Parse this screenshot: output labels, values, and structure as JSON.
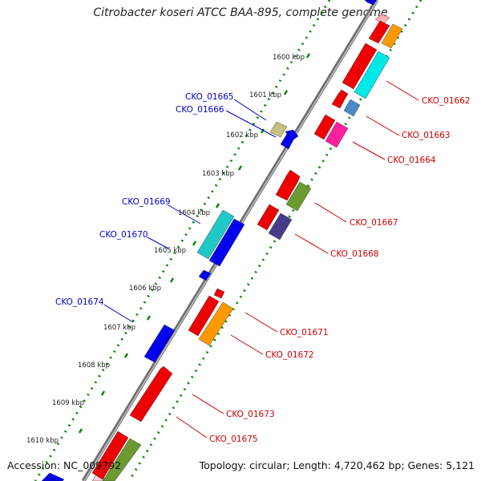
{
  "title": "Citrobacter koseri ATCC BAA-895, complete genome",
  "accession": "Accession: NC_009792",
  "summary": "Topology: circular; Length: 4,720,462 bp; Genes: 5,121",
  "ticks": [
    "1600 kbp",
    "1601 kbp",
    "1602 kbp",
    "1603 kbp",
    "1604 kbp",
    "1605 kbp",
    "1606 kbp",
    "1607 kbp",
    "1608 kbp",
    "1609 kbp",
    "1610 kbp"
  ],
  "gene_labels": [
    "CKO_01665",
    "CKO_01666",
    "CKO_01669",
    "CKO_01670",
    "CKO_01674",
    "CKO_01662",
    "CKO_01663",
    "CKO_01664",
    "CKO_01667",
    "CKO_01668",
    "CKO_01671",
    "CKO_01672",
    "CKO_01673",
    "CKO_01675"
  ],
  "colors": {
    "backbone": "#7a7a7a",
    "reverse_track": "#008800",
    "forward_track": "#008800",
    "label_blue": "#0000cc",
    "label_red": "#cc0000"
  }
}
